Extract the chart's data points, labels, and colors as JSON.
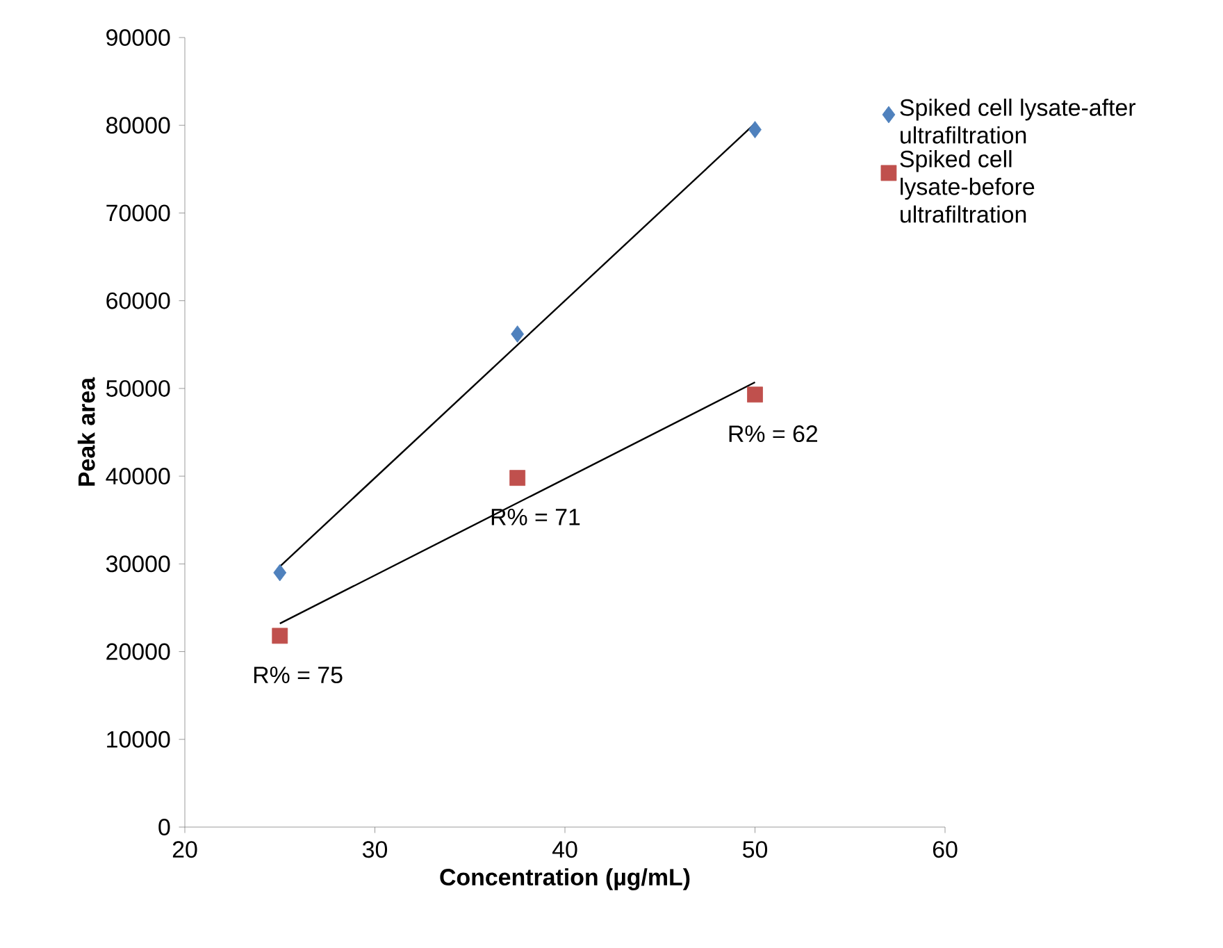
{
  "chart_data": {
    "type": "scatter",
    "xlabel": "Concentration (µg/mL)",
    "ylabel": "Peak area",
    "xlim": [
      20,
      60
    ],
    "ylim": [
      0,
      90000
    ],
    "xticks": [
      20,
      30,
      40,
      50,
      60
    ],
    "yticks": [
      0,
      10000,
      20000,
      30000,
      40000,
      50000,
      60000,
      70000,
      80000,
      90000
    ],
    "legend": "top right",
    "series": [
      {
        "name": "Spiked cell lysate-after ultrafiltration",
        "color": "#4f81bd",
        "marker": "diamond",
        "x": [
          25,
          37.5,
          50
        ],
        "values": [
          29000,
          56200,
          79500
        ]
      },
      {
        "name": "Spiked cell lysate-before ultrafiltration",
        "color": "#c0504d",
        "marker": "square",
        "x": [
          25,
          37.5,
          50
        ],
        "values": [
          21800,
          39800,
          49300
        ]
      },
      {
        "type": "line",
        "color": "#000000",
        "marker": "none",
        "line_style": "solid",
        "x": [
          25,
          50
        ],
        "values": [
          29700,
          80200
        ]
      },
      {
        "type": "line",
        "color": "#000000",
        "marker": "none",
        "line_style": "solid",
        "x": [
          25,
          50
        ],
        "values": [
          23200,
          50700
        ]
      }
    ],
    "annotations": [
      {
        "text": "R% = 75",
        "x": 25,
        "y": 21800
      },
      {
        "text": "R% = 71",
        "x": 37.5,
        "y": 39800
      },
      {
        "text": "R% = 62",
        "x": 50,
        "y": 49300
      }
    ]
  }
}
